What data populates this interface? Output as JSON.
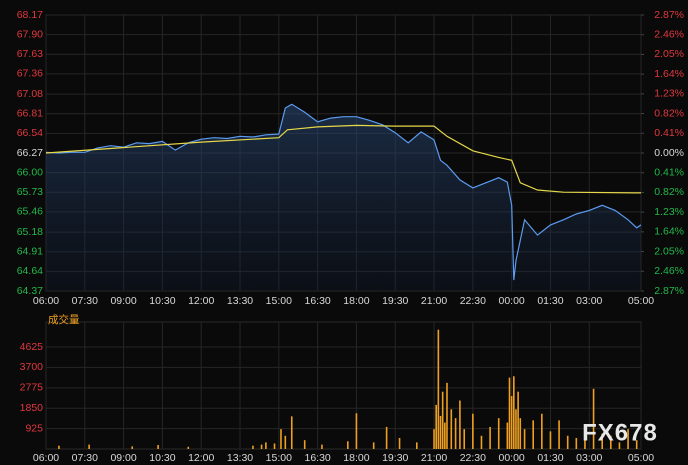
{
  "watermark": "FX678",
  "chart_data": [
    {
      "type": "line",
      "xlim": [
        0,
        1380
      ],
      "xticks": [
        {
          "value": 0,
          "label": "06:00"
        },
        {
          "value": 90,
          "label": "07:30"
        },
        {
          "value": 180,
          "label": "09:00"
        },
        {
          "value": 270,
          "label": "10:30"
        },
        {
          "value": 360,
          "label": "12:00"
        },
        {
          "value": 450,
          "label": "13:30"
        },
        {
          "value": 540,
          "label": "15:00"
        },
        {
          "value": 630,
          "label": "16:30"
        },
        {
          "value": 720,
          "label": "18:00"
        },
        {
          "value": 810,
          "label": "19:30"
        },
        {
          "value": 900,
          "label": "21:00"
        },
        {
          "value": 990,
          "label": "22:30"
        },
        {
          "value": 1080,
          "label": "00:00"
        },
        {
          "value": 1170,
          "label": "01:30"
        },
        {
          "value": 1260,
          "label": "03:00"
        },
        {
          "value": 1380,
          "label": "05:00"
        }
      ],
      "ylim": [
        64.37,
        68.17
      ],
      "yticks": [
        64.37,
        64.64,
        64.91,
        65.18,
        65.46,
        65.73,
        {
          "value": 66,
          "label": "66.00"
        },
        66.27,
        66.54,
        66.81,
        67.08,
        67.36,
        67.63,
        {
          "value": 67.9,
          "label": "67.90"
        },
        68.17
      ],
      "y2lim": [
        -2.87,
        2.87
      ],
      "y2ticks": [
        {
          "value": -2.87,
          "label": "2.87%"
        },
        {
          "value": -2.46,
          "label": "2.46%"
        },
        {
          "value": -2.05,
          "label": "2.05%"
        },
        {
          "value": -1.64,
          "label": "1.64%"
        },
        {
          "value": -1.23,
          "label": "1.23%"
        },
        {
          "value": -0.82,
          "label": "0.82%"
        },
        {
          "value": -0.41,
          "label": "0.41%"
        },
        {
          "value": 0,
          "label": "0.00%"
        },
        {
          "value": 0.41,
          "label": "0.41%"
        },
        {
          "value": 0.82,
          "label": "0.82%"
        },
        {
          "value": 1.23,
          "label": "1.23%"
        },
        {
          "value": 1.64,
          "label": "1.64%"
        },
        {
          "value": 2.05,
          "label": "2.05%"
        },
        {
          "value": 2.46,
          "label": "2.46%"
        },
        {
          "value": 2.87,
          "label": "2.87%"
        }
      ],
      "grid": true,
      "up_color": "#e0383e",
      "down_color": "#22b84a",
      "neutral_color": "#d8d8d8",
      "series": [
        {
          "color": "#5b9bf0",
          "area": true,
          "x": [
            0,
            30,
            60,
            90,
            120,
            150,
            180,
            210,
            240,
            270,
            300,
            330,
            360,
            390,
            420,
            450,
            480,
            510,
            540,
            555,
            570,
            600,
            630,
            660,
            690,
            720,
            750,
            780,
            810,
            840,
            870,
            900,
            915,
            930,
            960,
            990,
            1020,
            1050,
            1070,
            1080,
            1085,
            1090,
            1100,
            1110,
            1140,
            1170,
            1200,
            1230,
            1260,
            1290,
            1320,
            1350,
            1370,
            1380
          ],
          "values": [
            66.28,
            66.27,
            66.28,
            66.28,
            66.34,
            66.37,
            66.35,
            66.41,
            66.4,
            66.43,
            66.31,
            66.41,
            66.46,
            66.48,
            66.47,
            66.5,
            66.49,
            66.52,
            66.53,
            66.89,
            66.94,
            66.83,
            66.7,
            66.75,
            66.77,
            66.77,
            66.72,
            66.66,
            66.55,
            66.41,
            66.56,
            66.45,
            66.17,
            66.1,
            65.9,
            65.79,
            65.86,
            65.93,
            65.87,
            65.55,
            64.52,
            64.79,
            65.07,
            65.35,
            65.14,
            65.28,
            65.35,
            65.43,
            65.48,
            65.55,
            65.48,
            65.35,
            65.24,
            65.28
          ]
        },
        {
          "color": "#e6d84a",
          "x": [
            0,
            360,
            540,
            560,
            630,
            720,
            810,
            900,
            930,
            990,
            1050,
            1080,
            1100,
            1140,
            1200,
            1380
          ],
          "values": [
            66.27,
            66.42,
            66.48,
            66.59,
            66.63,
            66.65,
            66.64,
            66.64,
            66.5,
            66.3,
            66.21,
            66.17,
            65.86,
            65.76,
            65.73,
            65.72
          ]
        }
      ]
    },
    {
      "type": "bar",
      "title": "成交量",
      "color": "#f0a020",
      "xlim": [
        0,
        1380
      ],
      "xticks": [
        {
          "value": 0,
          "label": "06:00"
        },
        {
          "value": 90,
          "label": "07:30"
        },
        {
          "value": 180,
          "label": "09:00"
        },
        {
          "value": 270,
          "label": "10:30"
        },
        {
          "value": 360,
          "label": "12:00"
        },
        {
          "value": 450,
          "label": "13:30"
        },
        {
          "value": 540,
          "label": "15:00"
        },
        {
          "value": 630,
          "label": "16:30"
        },
        {
          "value": 720,
          "label": "18:00"
        },
        {
          "value": 810,
          "label": "19:30"
        },
        {
          "value": 900,
          "label": "21:00"
        },
        {
          "value": 990,
          "label": "22:30"
        },
        {
          "value": 1080,
          "label": "00:00"
        },
        {
          "value": 1170,
          "label": "01:30"
        },
        {
          "value": 1260,
          "label": "03:00"
        },
        {
          "value": 1380,
          "label": "05:00"
        }
      ],
      "ylim": [
        0,
        5760
      ],
      "yticks": [
        925,
        1850,
        2775,
        3700,
        4625
      ],
      "grid": true,
      "x": [
        30,
        100,
        200,
        260,
        330,
        480,
        500,
        510,
        530,
        545,
        555,
        570,
        600,
        640,
        700,
        720,
        760,
        790,
        820,
        860,
        900,
        905,
        910,
        915,
        920,
        925,
        930,
        940,
        950,
        960,
        970,
        990,
        1010,
        1030,
        1050,
        1070,
        1075,
        1080,
        1085,
        1090,
        1095,
        1100,
        1110,
        1130,
        1150,
        1170,
        1190,
        1210,
        1230,
        1250,
        1270,
        1290,
        1310,
        1330,
        1350,
        1370
      ],
      "values": [
        150,
        200,
        120,
        180,
        100,
        150,
        200,
        300,
        250,
        900,
        600,
        1480,
        400,
        200,
        350,
        1618,
        300,
        1000,
        500,
        300,
        900,
        2000,
        5411,
        1500,
        2600,
        1200,
        3000,
        1800,
        1400,
        2200,
        900,
        1600,
        600,
        1000,
        1400,
        1200,
        3237,
        2400,
        3300,
        1800,
        2600,
        1400,
        900,
        1300,
        1600,
        800,
        1300,
        600,
        500,
        900,
        2729,
        700,
        600,
        300,
        900,
        400
      ]
    }
  ]
}
